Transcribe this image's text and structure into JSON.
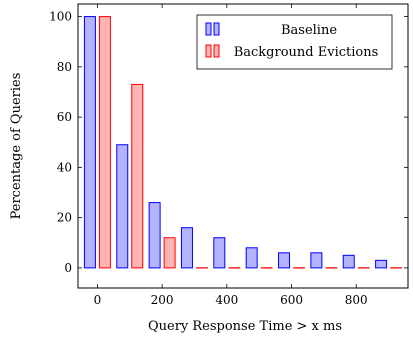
{
  "chart_data": {
    "type": "bar",
    "title": "",
    "xlabel": "Query Response Time > x ms",
    "ylabel": "Percentage of Queries",
    "x": [
      0,
      100,
      200,
      300,
      400,
      500,
      600,
      700,
      800,
      900
    ],
    "xlim": [
      -60,
      960
    ],
    "ylim": [
      -8,
      105
    ],
    "xticks": [
      0,
      200,
      400,
      600,
      800
    ],
    "yticks": [
      0,
      20,
      40,
      60,
      80,
      100
    ],
    "series": [
      {
        "name": "Baseline",
        "values": [
          100,
          49,
          26,
          16,
          12,
          8,
          6,
          6,
          5,
          3
        ],
        "fill": "#b3b3ff",
        "stroke": "#0000ff"
      },
      {
        "name": "Background Evictions",
        "values": [
          100,
          73,
          12,
          0,
          0,
          0,
          0,
          0,
          0,
          0
        ],
        "fill": "#ffb3b3",
        "stroke": "#ff0000"
      }
    ],
    "grid": false,
    "legend_position": "top-right"
  }
}
